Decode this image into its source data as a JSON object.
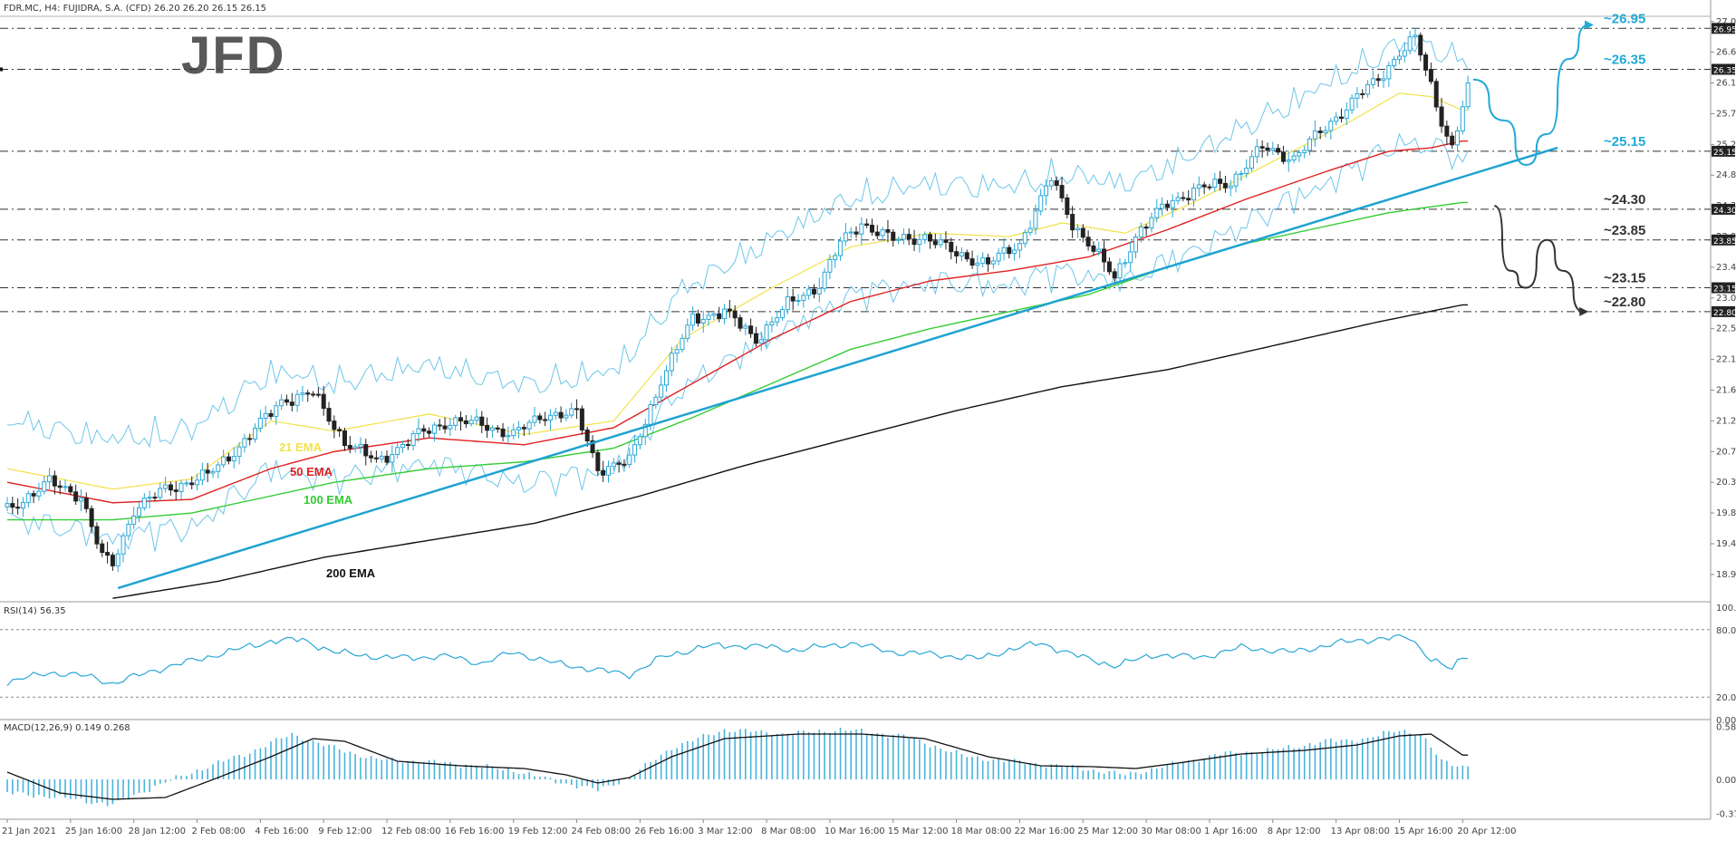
{
  "header": {
    "main": "FDR.MC, H4:  FUJIDRA, S.A. (CFD)  26.20 26.20 26.15 26.15",
    "rsi": "RSI(14) 56.35",
    "macd": "MACD(12,26,9) 0.149 0.268"
  },
  "logo": {
    "text": "JFD"
  },
  "colors": {
    "ema21": "#f2e24a",
    "ema50": "#e02020",
    "ema100": "#33cc33",
    "ema200": "#111111",
    "bollinger": "#6ec6ea",
    "trendline": "#1fa3d0",
    "level_label": "#22a9d6",
    "level_label_dark": "#333333",
    "rsi": "#2aa7d6",
    "macd_hist": "#4ab3dd",
    "macd_signal": "#111111",
    "candle_bull": "#2aa7d6",
    "candle_bear": "#222222"
  },
  "chart_data": {
    "type": "candlestick",
    "price_axis": {
      "ylim": [
        18.55,
        27.1
      ],
      "ticks": [
        "27.05",
        "26.60",
        "26.15",
        "25.70",
        "25.25",
        "24.80",
        "24.35",
        "23.90",
        "23.45",
        "23.00",
        "22.55",
        "22.10",
        "21.65",
        "21.20",
        "20.75",
        "20.30",
        "19.85",
        "19.40",
        "18.95"
      ],
      "tick_values": [
        27.05,
        26.6,
        26.15,
        25.7,
        25.25,
        24.8,
        24.35,
        23.9,
        23.45,
        23.0,
        22.55,
        22.1,
        21.65,
        21.2,
        20.75,
        20.3,
        19.85,
        19.4,
        18.95
      ],
      "current_price": "26.15"
    },
    "x_axis": {
      "labels": [
        "21 Jan 2021",
        "25 Jan 16:00",
        "28 Jan 12:00",
        "2 Feb 08:00",
        "4 Feb 16:00",
        "9 Feb 12:00",
        "12 Feb 08:00",
        "16 Feb 16:00",
        "19 Feb 12:00",
        "24 Feb 08:00",
        "26 Feb 16:00",
        "3 Mar 12:00",
        "8 Mar 08:00",
        "10 Mar 16:00",
        "15 Mar 12:00",
        "18 Mar 08:00",
        "22 Mar 16:00",
        "25 Mar 12:00",
        "30 Mar 08:00",
        "1 Apr 16:00",
        "8 Apr 12:00",
        "13 Apr 08:00",
        "15 Apr 16:00",
        "20 Apr 12:00"
      ],
      "label_bars": [
        0,
        12,
        24,
        36,
        48,
        60,
        72,
        84,
        96,
        108,
        120,
        132,
        144,
        156,
        168,
        180,
        192,
        204,
        216,
        228,
        240,
        252,
        264,
        276
      ],
      "bar_count": 278
    },
    "levels": [
      {
        "label": "~26.95",
        "value": 26.95,
        "style": "light"
      },
      {
        "label": "~26.35",
        "value": 26.35,
        "style": "light"
      },
      {
        "label": "~25.15",
        "value": 25.15,
        "style": "light"
      },
      {
        "label": "~24.30",
        "value": 24.3,
        "style": "dark"
      },
      {
        "label": "~23.85",
        "value": 23.85,
        "style": "dark"
      },
      {
        "label": "~23.15",
        "value": 23.15,
        "style": "dark"
      },
      {
        "label": "~22.80",
        "value": 22.8,
        "style": "dark"
      }
    ],
    "level_axis_tags": [
      "26.95",
      "26.35",
      "25.15",
      "24.30",
      "23.85",
      "23.15",
      "22.80"
    ],
    "ema_labels": {
      "ema21": "21 EMA",
      "ema50": "50 EMA",
      "ema100": "100 EMA",
      "ema200": "200 EMA"
    },
    "ema_keypoints": {
      "ema21": [
        [
          0,
          20.5
        ],
        [
          20,
          20.2
        ],
        [
          35,
          20.35
        ],
        [
          50,
          21.2
        ],
        [
          62,
          21.05
        ],
        [
          80,
          21.3
        ],
        [
          98,
          21.0
        ],
        [
          115,
          21.2
        ],
        [
          128,
          22.4
        ],
        [
          145,
          23.15
        ],
        [
          160,
          23.75
        ],
        [
          175,
          23.95
        ],
        [
          190,
          23.9
        ],
        [
          200,
          24.1
        ],
        [
          212,
          23.95
        ],
        [
          225,
          24.4
        ],
        [
          240,
          25.0
        ],
        [
          255,
          25.6
        ],
        [
          264,
          26.0
        ],
        [
          270,
          25.95
        ],
        [
          276,
          25.75
        ]
      ],
      "ema50": [
        [
          0,
          20.3
        ],
        [
          20,
          20.0
        ],
        [
          35,
          20.05
        ],
        [
          50,
          20.5
        ],
        [
          62,
          20.75
        ],
        [
          80,
          20.95
        ],
        [
          98,
          20.85
        ],
        [
          115,
          21.1
        ],
        [
          130,
          21.75
        ],
        [
          145,
          22.4
        ],
        [
          160,
          22.95
        ],
        [
          175,
          23.25
        ],
        [
          190,
          23.4
        ],
        [
          205,
          23.6
        ],
        [
          220,
          24.0
        ],
        [
          235,
          24.45
        ],
        [
          250,
          24.85
        ],
        [
          262,
          25.15
        ],
        [
          270,
          25.2
        ],
        [
          276,
          25.3
        ]
      ],
      "ema100": [
        [
          0,
          19.75
        ],
        [
          20,
          19.75
        ],
        [
          35,
          19.85
        ],
        [
          50,
          20.1
        ],
        [
          62,
          20.3
        ],
        [
          80,
          20.5
        ],
        [
          98,
          20.6
        ],
        [
          115,
          20.8
        ],
        [
          130,
          21.25
        ],
        [
          145,
          21.75
        ],
        [
          160,
          22.25
        ],
        [
          175,
          22.55
        ],
        [
          190,
          22.8
        ],
        [
          205,
          23.05
        ],
        [
          220,
          23.45
        ],
        [
          235,
          23.8
        ],
        [
          250,
          24.05
        ],
        [
          262,
          24.25
        ],
        [
          276,
          24.4
        ]
      ],
      "ema200": [
        [
          20,
          18.6
        ],
        [
          40,
          18.85
        ],
        [
          60,
          19.2
        ],
        [
          80,
          19.45
        ],
        [
          100,
          19.7
        ],
        [
          120,
          20.1
        ],
        [
          140,
          20.55
        ],
        [
          160,
          20.95
        ],
        [
          180,
          21.35
        ],
        [
          200,
          21.7
        ],
        [
          220,
          21.95
        ],
        [
          240,
          22.3
        ],
        [
          260,
          22.65
        ],
        [
          276,
          22.9
        ]
      ]
    },
    "price_keypoints": [
      [
        0,
        19.9
      ],
      [
        8,
        20.3
      ],
      [
        14,
        20.1
      ],
      [
        18,
        19.2
      ],
      [
        20,
        19.1
      ],
      [
        24,
        19.9
      ],
      [
        30,
        20.2
      ],
      [
        38,
        20.4
      ],
      [
        45,
        20.9
      ],
      [
        52,
        21.5
      ],
      [
        58,
        21.6
      ],
      [
        64,
        20.9
      ],
      [
        70,
        20.6
      ],
      [
        78,
        21.0
      ],
      [
        84,
        21.2
      ],
      [
        90,
        21.15
      ],
      [
        96,
        21.0
      ],
      [
        102,
        21.3
      ],
      [
        108,
        21.3
      ],
      [
        112,
        20.5
      ],
      [
        118,
        20.6
      ],
      [
        124,
        21.8
      ],
      [
        130,
        22.7
      ],
      [
        136,
        22.8
      ],
      [
        142,
        22.4
      ],
      [
        148,
        22.9
      ],
      [
        154,
        23.2
      ],
      [
        158,
        23.8
      ],
      [
        162,
        24.1
      ],
      [
        168,
        23.85
      ],
      [
        174,
        23.9
      ],
      [
        180,
        23.65
      ],
      [
        186,
        23.5
      ],
      [
        192,
        23.8
      ],
      [
        198,
        24.75
      ],
      [
        202,
        24.1
      ],
      [
        206,
        23.7
      ],
      [
        210,
        23.3
      ],
      [
        214,
        23.9
      ],
      [
        220,
        24.4
      ],
      [
        226,
        24.6
      ],
      [
        232,
        24.7
      ],
      [
        238,
        25.2
      ],
      [
        244,
        25.05
      ],
      [
        250,
        25.5
      ],
      [
        256,
        25.95
      ],
      [
        260,
        26.2
      ],
      [
        264,
        26.6
      ],
      [
        267,
        26.8
      ],
      [
        270,
        26.1
      ],
      [
        272,
        25.6
      ],
      [
        274,
        25.2
      ],
      [
        276,
        25.8
      ],
      [
        277,
        26.15
      ]
    ],
    "trendlines": [
      {
        "from": [
          21,
          18.75
        ],
        "to": [
          294,
          25.2
        ],
        "color": "trendline"
      },
      {
        "from": [
          20,
          18.6
        ],
        "to": [
          276,
          22.9
        ],
        "color": "ema200"
      }
    ],
    "scenarios": [
      {
        "points": [
          [
            278,
            26.2
          ],
          [
            284,
            25.6
          ],
          [
            288,
            24.95
          ],
          [
            292,
            25.4
          ],
          [
            296,
            26.5
          ],
          [
            300,
            27.0
          ]
        ],
        "color": "level_label",
        "arrow": true
      },
      {
        "points": [
          [
            282,
            24.35
          ],
          [
            285,
            23.4
          ],
          [
            288,
            23.15
          ],
          [
            292,
            23.85
          ],
          [
            295,
            23.4
          ],
          [
            299,
            22.8
          ]
        ],
        "color": "level_label_dark",
        "arrow": true
      }
    ],
    "rsi": {
      "label": "RSI(14) 56.35",
      "ticks": [
        "100.00",
        "80.00",
        "20.00",
        "0.00"
      ],
      "tick_values": [
        100,
        80,
        20,
        0
      ],
      "levels": [
        80,
        20
      ],
      "keypoints": [
        [
          0,
          33
        ],
        [
          8,
          42
        ],
        [
          16,
          38
        ],
        [
          20,
          32
        ],
        [
          28,
          44
        ],
        [
          40,
          58
        ],
        [
          50,
          70
        ],
        [
          56,
          71
        ],
        [
          62,
          60
        ],
        [
          72,
          55
        ],
        [
          84,
          56
        ],
        [
          90,
          50
        ],
        [
          96,
          60
        ],
        [
          104,
          50
        ],
        [
          112,
          44
        ],
        [
          118,
          40
        ],
        [
          124,
          55
        ],
        [
          132,
          65
        ],
        [
          140,
          66
        ],
        [
          150,
          62
        ],
        [
          160,
          68
        ],
        [
          168,
          60
        ],
        [
          176,
          58
        ],
        [
          184,
          54
        ],
        [
          190,
          62
        ],
        [
          196,
          68
        ],
        [
          204,
          55
        ],
        [
          210,
          48
        ],
        [
          218,
          58
        ],
        [
          226,
          55
        ],
        [
          234,
          64
        ],
        [
          244,
          60
        ],
        [
          252,
          68
        ],
        [
          260,
          72
        ],
        [
          266,
          73
        ],
        [
          270,
          54
        ],
        [
          274,
          44
        ],
        [
          276,
          56
        ],
        [
          277,
          56.35
        ]
      ]
    },
    "macd": {
      "label": "MACD(12,26,9) 0.149 0.268",
      "ticks": [
        "0.584",
        "0.000",
        "-0.377"
      ],
      "tick_values": [
        0.584,
        0.0,
        -0.377
      ],
      "ylim": [
        -0.42,
        0.62
      ],
      "hist_keypoints": [
        [
          0,
          -0.15
        ],
        [
          10,
          -0.2
        ],
        [
          20,
          -0.28
        ],
        [
          28,
          -0.08
        ],
        [
          36,
          0.1
        ],
        [
          46,
          0.3
        ],
        [
          54,
          0.5
        ],
        [
          60,
          0.38
        ],
        [
          70,
          0.22
        ],
        [
          84,
          0.18
        ],
        [
          96,
          0.1
        ],
        [
          104,
          -0.02
        ],
        [
          112,
          -0.12
        ],
        [
          118,
          0.02
        ],
        [
          126,
          0.35
        ],
        [
          136,
          0.55
        ],
        [
          148,
          0.5
        ],
        [
          158,
          0.55
        ],
        [
          170,
          0.48
        ],
        [
          182,
          0.25
        ],
        [
          194,
          0.18
        ],
        [
          204,
          0.12
        ],
        [
          212,
          0.05
        ],
        [
          220,
          0.15
        ],
        [
          230,
          0.28
        ],
        [
          240,
          0.32
        ],
        [
          250,
          0.42
        ],
        [
          258,
          0.45
        ],
        [
          264,
          0.55
        ],
        [
          268,
          0.5
        ],
        [
          272,
          0.2
        ],
        [
          276,
          0.149
        ]
      ],
      "signal_keypoints": [
        [
          0,
          0.08
        ],
        [
          10,
          -0.15
        ],
        [
          20,
          -0.22
        ],
        [
          30,
          -0.2
        ],
        [
          40,
          0.02
        ],
        [
          50,
          0.25
        ],
        [
          58,
          0.45
        ],
        [
          64,
          0.42
        ],
        [
          74,
          0.2
        ],
        [
          86,
          0.15
        ],
        [
          98,
          0.12
        ],
        [
          106,
          0.05
        ],
        [
          112,
          -0.04
        ],
        [
          118,
          0.02
        ],
        [
          126,
          0.25
        ],
        [
          136,
          0.45
        ],
        [
          150,
          0.5
        ],
        [
          162,
          0.5
        ],
        [
          174,
          0.45
        ],
        [
          186,
          0.25
        ],
        [
          196,
          0.15
        ],
        [
          206,
          0.14
        ],
        [
          214,
          0.12
        ],
        [
          222,
          0.18
        ],
        [
          234,
          0.28
        ],
        [
          246,
          0.32
        ],
        [
          256,
          0.38
        ],
        [
          264,
          0.48
        ],
        [
          270,
          0.5
        ],
        [
          276,
          0.268
        ]
      ]
    }
  }
}
